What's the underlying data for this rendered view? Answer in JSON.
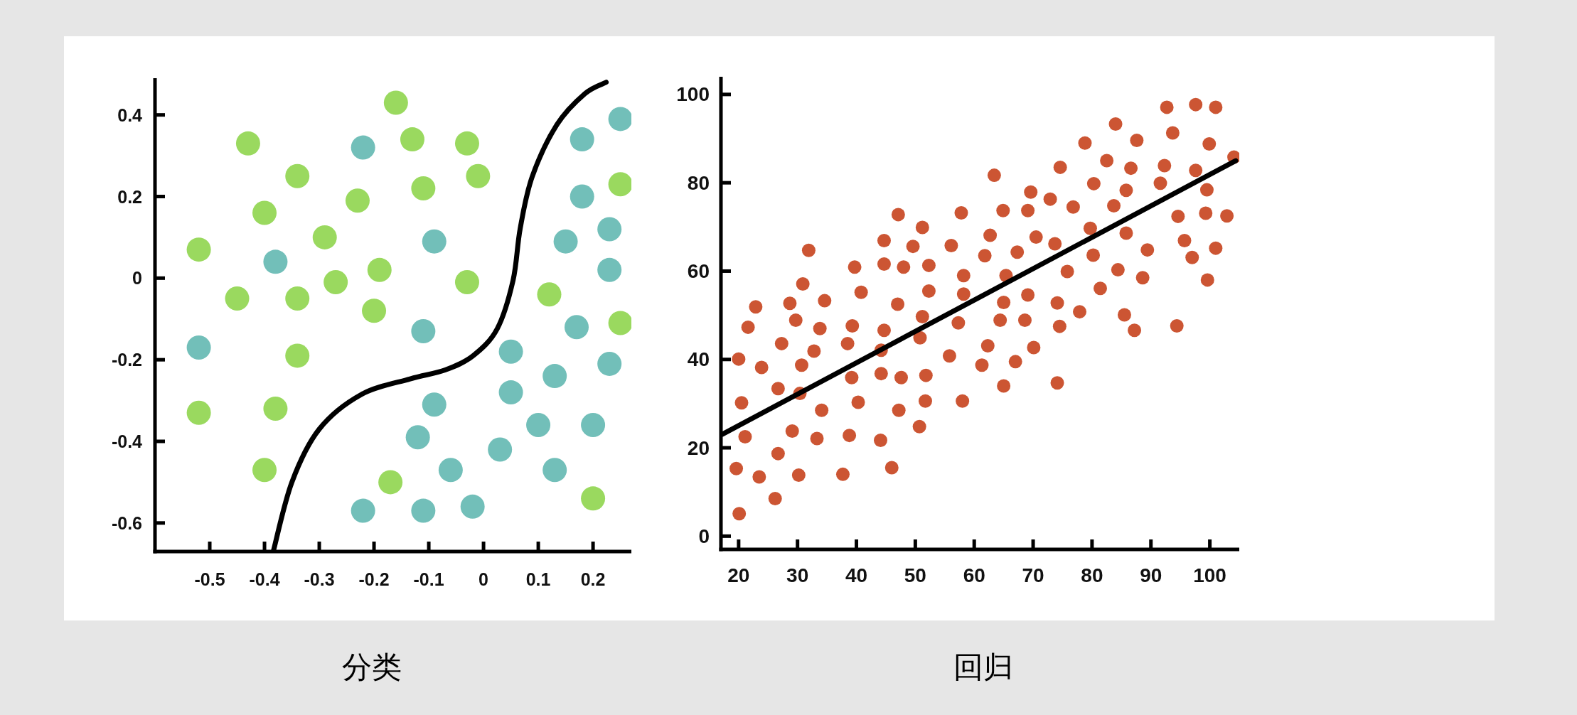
{
  "chart_data": [
    {
      "type": "scatter",
      "title": "分类",
      "xlim": [
        -0.6,
        0.27
      ],
      "ylim": [
        -0.67,
        0.49
      ],
      "xticks": [
        -0.5,
        -0.4,
        -0.3,
        -0.2,
        -0.1,
        0,
        0.1,
        0.2
      ],
      "yticks": [
        0.4,
        0.2,
        0,
        -0.2,
        -0.4,
        -0.6
      ],
      "grid": false,
      "series": [
        {
          "color": "#9ad95f",
          "marker": "circle",
          "x": [
            -0.16,
            -0.43,
            -0.13,
            -0.03,
            -0.34,
            -0.01,
            -0.11,
            -0.23,
            -0.4,
            -0.29,
            -0.52,
            -0.19,
            -0.27,
            -0.03,
            -0.45,
            -0.34,
            -0.2,
            0.12,
            0.25,
            0.25,
            -0.34,
            -0.52,
            -0.38,
            -0.4,
            -0.17,
            0.2
          ],
          "values": [
            0.43,
            0.33,
            0.34,
            0.33,
            0.25,
            0.25,
            0.22,
            0.19,
            0.16,
            0.1,
            0.07,
            0.02,
            -0.01,
            -0.01,
            -0.05,
            -0.05,
            -0.08,
            -0.04,
            0.23,
            -0.11,
            -0.19,
            -0.33,
            -0.32,
            -0.47,
            -0.5,
            -0.54
          ]
        },
        {
          "color": "#72bfb9",
          "marker": "circle",
          "x": [
            -0.22,
            -0.38,
            -0.09,
            0.18,
            0.25,
            0.18,
            0.23,
            0.15,
            0.23,
            -0.11,
            0.17,
            -0.52,
            0.05,
            0.23,
            0.13,
            0.05,
            -0.09,
            0.1,
            0.2,
            -0.12,
            0.03,
            -0.06,
            0.13,
            -0.22,
            -0.11,
            -0.02
          ],
          "values": [
            0.32,
            0.04,
            0.09,
            0.34,
            0.39,
            0.2,
            0.12,
            0.09,
            0.02,
            -0.13,
            -0.12,
            -0.17,
            -0.18,
            -0.21,
            -0.24,
            -0.28,
            -0.31,
            -0.36,
            -0.36,
            -0.39,
            -0.42,
            -0.47,
            -0.47,
            -0.57,
            -0.57,
            -0.56
          ]
        },
        {
          "type": "line",
          "color": "#000000",
          "x": [
            -0.384,
            -0.35,
            -0.3,
            -0.223,
            -0.134,
            -0.07,
            -0.019,
            0.025,
            0.054,
            0.067,
            0.089,
            0.134,
            0.185,
            0.224
          ],
          "values": [
            -0.67,
            -0.5,
            -0.37,
            -0.285,
            -0.247,
            -0.225,
            -0.19,
            -0.124,
            -0.005,
            0.122,
            0.249,
            0.376,
            0.452,
            0.48
          ]
        }
      ]
    },
    {
      "type": "scatter",
      "title": "回归",
      "xlim": [
        17,
        105
      ],
      "ylim": [
        -3,
        104
      ],
      "xticks": [
        20,
        30,
        40,
        50,
        60,
        70,
        80,
        90,
        100
      ],
      "yticks": [
        0,
        20,
        40,
        60,
        80,
        100
      ],
      "grid": false,
      "series": [
        {
          "color": "#cc5533",
          "marker": "circle",
          "x": [
            20,
            20.5,
            21.1,
            19.6,
            20.1,
            21.6,
            22.9,
            23.9,
            23.5,
            26.2,
            26.7,
            26.7,
            27.3,
            28.7,
            29.7,
            29.1,
            30.2,
            30.4,
            30.7,
            30.9,
            31.9,
            32.8,
            33.3,
            33.8,
            34.1,
            34.6,
            37.7,
            38.5,
            38.8,
            39.2,
            39.3,
            39.7,
            40.3,
            40.8,
            44.1,
            44.2,
            44.2,
            44.7,
            44.7,
            44.7,
            46.0,
            47.0,
            47.1,
            47.2,
            47.6,
            48.0,
            49.6,
            50.7,
            50.8,
            51.2,
            51.2,
            51.7,
            51.8,
            52.3,
            52.3,
            55.8,
            56.1,
            57.3,
            57.8,
            58.0,
            58.2,
            58.2,
            61.3,
            61.8,
            62.3,
            62.7,
            63.4,
            64.4,
            65.0,
            65.0,
            64.9,
            65.4,
            67.0,
            67.3,
            68.6,
            69.1,
            69.1,
            69.6,
            70.1,
            70.5,
            72.9,
            73.7,
            74.1,
            74.1,
            74.5,
            74.6,
            75.8,
            76.8,
            77.9,
            78.8,
            79.7,
            80.2,
            80.3,
            81.4,
            82.5,
            83.7,
            84.0,
            84.4,
            85.5,
            85.8,
            85.8,
            86.6,
            87.2,
            87.6,
            88.6,
            89.4,
            91.6,
            92.3,
            92.7,
            93.7,
            94.4,
            94.6,
            95.7,
            97.0,
            97.6,
            97.6,
            99.3,
            99.5,
            99.6,
            99.9,
            101.0,
            101.0,
            102.9,
            104.1
          ],
          "values": [
            40.1,
            30.2,
            22.5,
            15.3,
            5.1,
            47.3,
            51.9,
            38.2,
            13.4,
            8.5,
            18.7,
            33.4,
            43.6,
            52.7,
            48.9,
            23.8,
            13.8,
            32.3,
            38.7,
            57.1,
            64.7,
            41.9,
            22.1,
            47.0,
            28.5,
            53.3,
            14.0,
            43.6,
            22.8,
            35.9,
            47.6,
            60.9,
            30.3,
            55.2,
            21.7,
            36.8,
            42.1,
            46.6,
            61.6,
            66.9,
            15.5,
            52.5,
            72.8,
            28.5,
            35.9,
            60.9,
            65.6,
            24.8,
            44.9,
            49.7,
            69.9,
            30.6,
            36.4,
            55.5,
            61.3,
            40.8,
            65.8,
            48.3,
            73.2,
            30.6,
            54.8,
            59.0,
            38.7,
            63.5,
            43.1,
            68.1,
            81.7,
            48.9,
            34.0,
            52.9,
            73.7,
            59.0,
            39.5,
            64.3,
            48.9,
            54.6,
            73.7,
            77.9,
            42.7,
            67.7,
            76.3,
            66.2,
            34.7,
            52.8,
            47.5,
            83.5,
            59.9,
            74.5,
            50.8,
            89.0,
            69.7,
            63.6,
            79.8,
            56.1,
            85.0,
            74.8,
            93.3,
            60.3,
            50.1,
            78.3,
            68.6,
            83.3,
            46.6,
            89.6,
            58.5,
            64.8,
            79.9,
            83.9,
            97.1,
            91.3,
            47.6,
            72.4,
            66.9,
            63.1,
            97.7,
            82.8,
            73.1,
            78.4,
            58.0,
            88.8,
            97.1,
            65.2,
            72.5,
            85.8
          ]
        },
        {
          "type": "line",
          "color": "#000000",
          "x": [
            17,
            104.4
          ],
          "values": [
            22.9,
            85.0
          ]
        }
      ]
    }
  ]
}
